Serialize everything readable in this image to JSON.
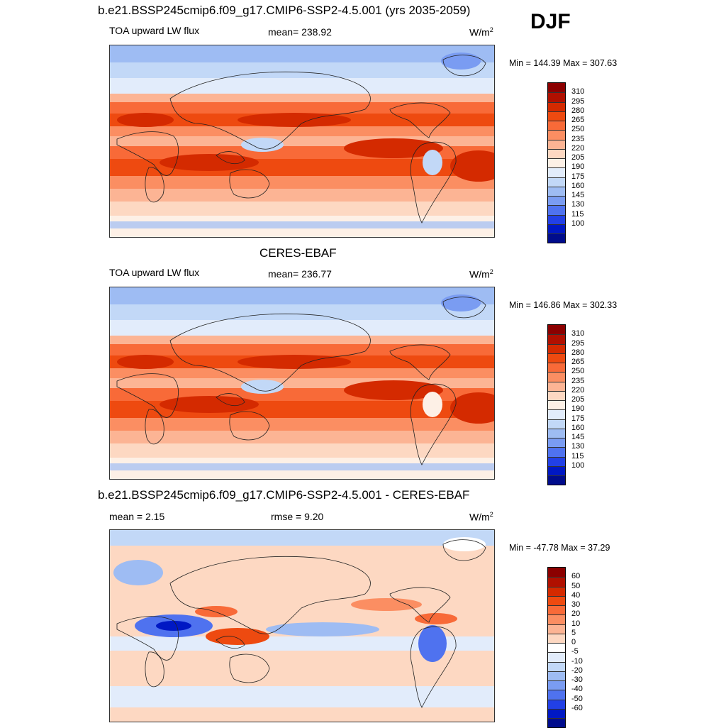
{
  "season": "DJF",
  "panels": [
    {
      "title": "b.e21.BSSP245cmip6.f09_g17.CMIP6-SSP2-4.5.001 (yrs 2035-2059)",
      "left_label": "TOA upward LW flux",
      "center_label": "mean= 238.92",
      "unit_base": "W/m",
      "unit_exp": "2",
      "minmax": "Min = 144.39 Max = 307.63",
      "colorbar": {
        "ticks": [
          "310",
          "295",
          "280",
          "265",
          "250",
          "235",
          "220",
          "205",
          "190",
          "175",
          "160",
          "145",
          "130",
          "115",
          "100"
        ],
        "colors": [
          "#8b0000",
          "#b01000",
          "#d42a00",
          "#ee4a10",
          "#f86a38",
          "#fb8e62",
          "#fcb494",
          "#fdd8c2",
          "#fdf0e6",
          "#e2ecfb",
          "#c2d8f7",
          "#9ebcf3",
          "#7a9cf2",
          "#4f72ef",
          "#2240e6",
          "#0018c4",
          "#000c8c"
        ]
      },
      "map_kind": "flux"
    },
    {
      "title": "CERES-EBAF",
      "left_label": "TOA upward LW flux",
      "center_label": "mean= 236.77",
      "unit_base": "W/m",
      "unit_exp": "2",
      "minmax": "Min = 146.86 Max = 302.33",
      "colorbar": {
        "ticks": [
          "310",
          "295",
          "280",
          "265",
          "250",
          "235",
          "220",
          "205",
          "190",
          "175",
          "160",
          "145",
          "130",
          "115",
          "100"
        ],
        "colors": [
          "#8b0000",
          "#b01000",
          "#d42a00",
          "#ee4a10",
          "#f86a38",
          "#fb8e62",
          "#fcb494",
          "#fdd8c2",
          "#fdf0e6",
          "#e2ecfb",
          "#c2d8f7",
          "#9ebcf3",
          "#7a9cf2",
          "#4f72ef",
          "#2240e6",
          "#0018c4",
          "#000c8c"
        ]
      },
      "map_kind": "flux"
    },
    {
      "title": "b.e21.BSSP245cmip6.f09_g17.CMIP6-SSP2-4.5.001 - CERES-EBAF",
      "left_label": "mean =   2.15",
      "center_label": "rmse =   9.20",
      "unit_base": "W/m",
      "unit_exp": "2",
      "minmax": "Min = -47.78 Max =  37.29",
      "colorbar": {
        "ticks": [
          "60",
          "50",
          "40",
          "30",
          "20",
          "10",
          "5",
          "0",
          "-5",
          "-10",
          "-20",
          "-30",
          "-40",
          "-50",
          "-60"
        ],
        "colors": [
          "#8b0000",
          "#b01000",
          "#d42a00",
          "#ee4a10",
          "#f86a38",
          "#fb8e62",
          "#fcb494",
          "#fdd8c2",
          "#ffffff",
          "#e2ecfb",
          "#c2d8f7",
          "#9ebcf3",
          "#7a9cf2",
          "#4f72ef",
          "#2240e6",
          "#0018c4",
          "#000c8c"
        ]
      },
      "map_kind": "diff"
    }
  ]
}
